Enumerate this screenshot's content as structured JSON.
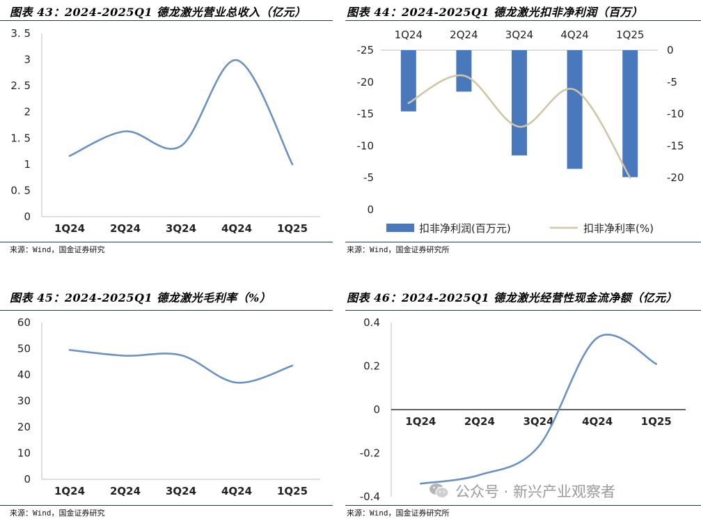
{
  "panels": [
    {
      "title": "图表 43：2024-2025Q1 德龙激光营业总收入（亿元）",
      "source": "来源：Wind，国金证券研究"
    },
    {
      "title": "图表 44：2024-2025Q1 德龙激光扣非净利润（百万）",
      "source": "来源：Wind，国金证券研究所"
    },
    {
      "title": "图表 45：2024-2025Q1 德龙激光毛利率（%）",
      "source": "来源：Wind，国金证券研究"
    },
    {
      "title": "图表 46：2024-2025Q1 德龙激光经营性现金流净额（亿元）",
      "source": "来源：Wind，国金证券研究所"
    }
  ],
  "watermark": {
    "text": "公众号 · 新兴产业观察者",
    "icon": "wechat-icon",
    "color": "#9a9a9a"
  },
  "colors": {
    "line": "#6b91c2",
    "bar": "#4a78bd",
    "rate_line": "#cfc6a4",
    "axis": "#bfbfbf",
    "rule": "#1f3a5f"
  },
  "chart_data": [
    {
      "type": "line",
      "categories": [
        "1Q24",
        "2Q24",
        "3Q24",
        "4Q24",
        "1Q25"
      ],
      "series": [
        {
          "values": [
            1.16,
            1.63,
            1.35,
            2.99,
            1.0
          ]
        }
      ],
      "ylim": [
        0,
        3.5
      ],
      "yticks": [
        "0",
        "0. 5",
        "1",
        "1. 5",
        "2",
        "2. 5",
        "3",
        "3. 5"
      ],
      "grid": false
    },
    {
      "type": "bar",
      "categories": [
        "1Q24",
        "2Q24",
        "3Q24",
        "4Q24",
        "1Q25"
      ],
      "series": [
        {
          "name": "扣非净利润(百万元)",
          "type": "bar",
          "axis": "left",
          "values": [
            -9.6,
            -6.5,
            -16.5,
            -18.6,
            -19.9
          ]
        },
        {
          "name": "扣非净利率(%)",
          "type": "line",
          "axis": "right",
          "values": [
            -8.3,
            -4.0,
            -12.0,
            -6.2,
            -20.0
          ]
        }
      ],
      "ylim": [
        -25,
        0
      ],
      "y2lim": [
        -25,
        0
      ],
      "yticks": [
        "0",
        "-5",
        "-10",
        "-15",
        "-20",
        "-25"
      ],
      "y2ticks": [
        "0",
        "-5",
        "-10",
        "-15",
        "-20"
      ],
      "legend": "bottom",
      "grid": false
    },
    {
      "type": "line",
      "categories": [
        "1Q24",
        "2Q24",
        "3Q24",
        "4Q24",
        "1Q25"
      ],
      "series": [
        {
          "values": [
            49.5,
            47.3,
            47.5,
            37.0,
            43.5
          ]
        }
      ],
      "ylim": [
        0,
        60
      ],
      "yticks": [
        "0",
        "10",
        "20",
        "30",
        "40",
        "50",
        "60"
      ],
      "grid": false
    },
    {
      "type": "line",
      "categories": [
        "1Q24",
        "2Q24",
        "3Q24",
        "4Q24",
        "1Q25"
      ],
      "series": [
        {
          "values": [
            -0.34,
            -0.3,
            -0.17,
            0.33,
            0.21
          ]
        }
      ],
      "ylim": [
        -0.4,
        0.4
      ],
      "yticks": [
        "-0.4",
        "-0.2",
        "0",
        "0.2",
        "0.4"
      ],
      "grid": false
    }
  ]
}
